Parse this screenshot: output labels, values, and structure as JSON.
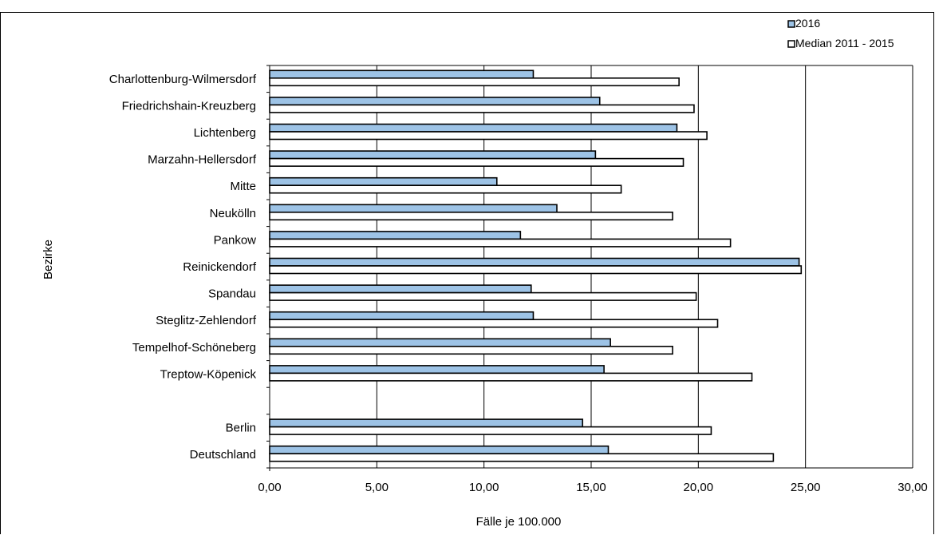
{
  "chart_data": {
    "type": "bar",
    "orientation": "horizontal",
    "title": "",
    "xlabel": "Fälle je 100.000",
    "ylabel": "Bezirke",
    "xlim": [
      0,
      30
    ],
    "xticks": [
      "0,00",
      "5,00",
      "10,00",
      "15,00",
      "20,00",
      "25,00",
      "30,00"
    ],
    "grid": "vertical",
    "legend_position": "top-right",
    "categories": [
      "Charlottenburg-Wilmersdorf",
      "Friedrichshain-Kreuzberg",
      "Lichtenberg",
      "Marzahn-Hellersdorf",
      "Mitte",
      "Neukölln",
      "Pankow",
      "Reinickendorf",
      "Spandau",
      "Steglitz-Zehlendorf",
      "Tempelhof-Schöneberg",
      "Treptow-Köpenick",
      "",
      "Berlin",
      "Deutschland"
    ],
    "series": [
      {
        "name": "2016",
        "color": "#9dc3e6",
        "values": [
          12.3,
          15.4,
          19.0,
          15.2,
          10.6,
          13.4,
          11.7,
          24.7,
          12.2,
          12.3,
          15.9,
          15.6,
          null,
          14.6,
          15.8
        ]
      },
      {
        "name": "Median 2011 - 2015",
        "color": "#ffffff",
        "values": [
          19.1,
          19.8,
          20.4,
          19.3,
          16.4,
          18.8,
          21.5,
          24.8,
          19.9,
          20.9,
          18.8,
          22.5,
          null,
          20.6,
          23.5
        ]
      }
    ]
  }
}
